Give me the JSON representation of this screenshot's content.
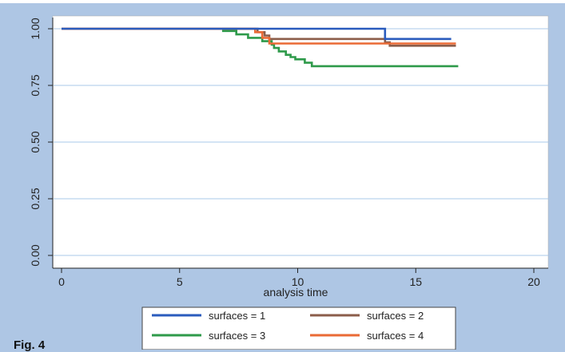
{
  "figure_label": "Fig. 4",
  "chart_data": {
    "type": "line",
    "title": "",
    "xlabel": "analysis time",
    "ylabel": "",
    "xlim": [
      0,
      20
    ],
    "ylim": [
      0,
      1
    ],
    "x_ticks": [
      0,
      5,
      10,
      15,
      20
    ],
    "y_ticks": [
      0.0,
      0.25,
      0.5,
      0.75,
      1.0
    ],
    "x_tick_labels": [
      "0",
      "5",
      "10",
      "15",
      "20"
    ],
    "y_tick_labels": [
      "0.00",
      "0.25",
      "0.50",
      "0.75",
      "1.00"
    ],
    "grid": "horizontal",
    "legend_position": "bottom",
    "colors": {
      "figure_background": "#aec6e4",
      "plot_background": "#ffffff",
      "grid": "#a9c8ea"
    },
    "series": [
      {
        "name": "surfaces = 1",
        "color": "#2a5bbd",
        "points": [
          [
            0,
            1.0
          ],
          [
            13.7,
            1.0
          ],
          [
            13.7,
            0.955
          ],
          [
            16.5,
            0.955
          ]
        ]
      },
      {
        "name": "surfaces = 2",
        "color": "#8b5d4a",
        "points": [
          [
            0,
            1.0
          ],
          [
            8.3,
            1.0
          ],
          [
            8.3,
            0.985
          ],
          [
            8.6,
            0.985
          ],
          [
            8.6,
            0.97
          ],
          [
            8.8,
            0.97
          ],
          [
            8.8,
            0.955
          ],
          [
            13.7,
            0.955
          ],
          [
            13.7,
            0.94
          ],
          [
            13.9,
            0.94
          ],
          [
            13.9,
            0.925
          ],
          [
            16.7,
            0.925
          ]
        ]
      },
      {
        "name": "surfaces = 3",
        "color": "#2e9a4a",
        "points": [
          [
            6.8,
            0.99
          ],
          [
            7.4,
            0.99
          ],
          [
            7.4,
            0.975
          ],
          [
            7.9,
            0.975
          ],
          [
            7.9,
            0.96
          ],
          [
            8.5,
            0.96
          ],
          [
            8.5,
            0.945
          ],
          [
            8.9,
            0.945
          ],
          [
            8.9,
            0.93
          ],
          [
            9.0,
            0.93
          ],
          [
            9.0,
            0.915
          ],
          [
            9.2,
            0.915
          ],
          [
            9.2,
            0.9
          ],
          [
            9.5,
            0.9
          ],
          [
            9.5,
            0.885
          ],
          [
            9.7,
            0.885
          ],
          [
            9.7,
            0.875
          ],
          [
            9.9,
            0.875
          ],
          [
            9.9,
            0.865
          ],
          [
            10.3,
            0.865
          ],
          [
            10.3,
            0.85
          ],
          [
            10.6,
            0.85
          ],
          [
            10.6,
            0.835
          ],
          [
            16.8,
            0.835
          ]
        ]
      },
      {
        "name": "surfaces = 4",
        "color": "#ea6a35",
        "points": [
          [
            0,
            1.0
          ],
          [
            8.2,
            1.0
          ],
          [
            8.2,
            0.985
          ],
          [
            8.5,
            0.985
          ],
          [
            8.5,
            0.96
          ],
          [
            8.8,
            0.96
          ],
          [
            8.8,
            0.935
          ],
          [
            16.7,
            0.935
          ]
        ]
      }
    ]
  }
}
